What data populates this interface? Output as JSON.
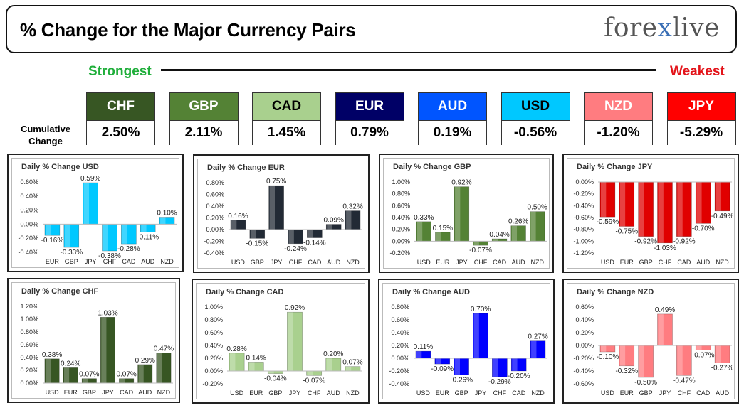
{
  "header": {
    "title": "% Change for the Major Currency Pairs",
    "logo_prefix": "fore",
    "logo_x": "x",
    "logo_suffix": "live"
  },
  "scale": {
    "strongest": "Strongest",
    "weakest": "Weakest"
  },
  "cumulative": {
    "label": "Cumulative Change",
    "items": [
      {
        "currency": "CHF",
        "value": "2.50%",
        "color": "#375623",
        "text": "#ffffff"
      },
      {
        "currency": "GBP",
        "value": "2.11%",
        "color": "#548235",
        "text": "#ffffff"
      },
      {
        "currency": "CAD",
        "value": "1.45%",
        "color": "#a9d08e",
        "text": "#000000"
      },
      {
        "currency": "EUR",
        "value": "0.79%",
        "color": "#000066",
        "text": "#ffffff"
      },
      {
        "currency": "AUD",
        "value": "0.19%",
        "color": "#0055ff",
        "text": "#ffffff"
      },
      {
        "currency": "USD",
        "value": "-0.56%",
        "color": "#00c8ff",
        "text": "#000000"
      },
      {
        "currency": "NZD",
        "value": "-1.20%",
        "color": "#ff7c80",
        "text": "#ffffff"
      },
      {
        "currency": "JPY",
        "value": "-5.29%",
        "color": "#ff0000",
        "text": "#ffffff"
      }
    ]
  },
  "chart_data": [
    {
      "type": "bar",
      "title": "Daily % Change USD",
      "categories": [
        "EUR",
        "GBP",
        "JPY",
        "CHF",
        "CAD",
        "AUD",
        "NZD"
      ],
      "values": [
        -0.16,
        -0.33,
        0.59,
        -0.38,
        -0.28,
        -0.11,
        0.1
      ],
      "labels": [
        "-0.16%",
        "-0.33%",
        "0.59%",
        "-0.38%",
        "-0.28%",
        "-0.11%",
        "0.10%"
      ],
      "yticks": [
        "0.60%",
        "0.40%",
        "0.20%",
        "0.00%",
        "-0.20%",
        "-0.40%"
      ],
      "ylim": [
        -0.4,
        0.6
      ],
      "color": "#00c8ff"
    },
    {
      "type": "bar",
      "title": "Daily % Change EUR",
      "categories": [
        "USD",
        "GBP",
        "JPY",
        "CHF",
        "CAD",
        "AUD",
        "NZD"
      ],
      "values": [
        0.16,
        -0.15,
        0.75,
        -0.24,
        -0.14,
        0.09,
        0.32
      ],
      "labels": [
        "0.16%",
        "-0.15%",
        "0.75%",
        "-0.24%",
        "-0.14%",
        "0.09%",
        "0.32%"
      ],
      "yticks": [
        "0.80%",
        "0.60%",
        "0.40%",
        "0.20%",
        "0.00%",
        "-0.20%",
        "-0.40%"
      ],
      "ylim": [
        -0.4,
        0.8
      ],
      "color": "#222a35"
    },
    {
      "type": "bar",
      "title": "Daily % Change GBP",
      "categories": [
        "USD",
        "EUR",
        "JPY",
        "CHF",
        "CAD",
        "AUD",
        "NZD"
      ],
      "values": [
        0.33,
        0.15,
        0.92,
        -0.07,
        0.04,
        0.26,
        0.5
      ],
      "labels": [
        "0.33%",
        "0.15%",
        "0.92%",
        "-0.07%",
        "0.04%",
        "0.26%",
        "0.50%"
      ],
      "yticks": [
        "1.00%",
        "0.80%",
        "0.60%",
        "0.40%",
        "0.20%",
        "0.00%",
        "-0.20%"
      ],
      "ylim": [
        -0.2,
        1.0
      ],
      "color": "#548235"
    },
    {
      "type": "bar",
      "title": "Daily % Change JPY",
      "categories": [
        "USD",
        "EUR",
        "GBP",
        "CHF",
        "CAD",
        "AUD",
        "NZD"
      ],
      "values": [
        -0.59,
        -0.75,
        -0.92,
        -1.03,
        -0.92,
        -0.7,
        -0.49
      ],
      "labels": [
        "-0.59%",
        "-0.75%",
        "-0.92%",
        "-1.03%",
        "-0.92%",
        "-0.70%",
        "-0.49%"
      ],
      "yticks": [
        "0.00%",
        "-0.20%",
        "-0.40%",
        "-0.60%",
        "-0.80%",
        "-1.00%",
        "-1.20%"
      ],
      "ylim": [
        -1.2,
        0.0
      ],
      "color": "#e00000"
    },
    {
      "type": "bar",
      "title": "Daily % Change CHF",
      "categories": [
        "USD",
        "EUR",
        "GBP",
        "JPY",
        "CAD",
        "AUD",
        "NZD"
      ],
      "values": [
        0.38,
        0.24,
        0.07,
        1.03,
        0.07,
        0.29,
        0.47
      ],
      "labels": [
        "0.38%",
        "0.24%",
        "0.07%",
        "1.03%",
        "0.07%",
        "0.29%",
        "0.47%"
      ],
      "yticks": [
        "1.20%",
        "1.00%",
        "0.80%",
        "0.60%",
        "0.40%",
        "0.20%",
        "0.00%"
      ],
      "ylim": [
        0.0,
        1.2
      ],
      "color": "#375623"
    },
    {
      "type": "bar",
      "title": "Daily % Change CAD",
      "categories": [
        "USD",
        "EUR",
        "GBP",
        "JPY",
        "CHF",
        "AUD",
        "NZD"
      ],
      "values": [
        0.28,
        0.14,
        -0.04,
        0.92,
        -0.07,
        0.2,
        0.07
      ],
      "labels": [
        "0.28%",
        "0.14%",
        "-0.04%",
        "0.92%",
        "-0.07%",
        "0.20%",
        "0.07%"
      ],
      "yticks": [
        "1.00%",
        "0.80%",
        "0.60%",
        "0.40%",
        "0.20%",
        "0.00%",
        "-0.20%"
      ],
      "ylim": [
        -0.2,
        1.0
      ],
      "color": "#a9d08e"
    },
    {
      "type": "bar",
      "title": "Daily % Change AUD",
      "categories": [
        "USD",
        "EUR",
        "GBP",
        "JPY",
        "CHF",
        "CAD",
        "NZD"
      ],
      "values": [
        0.11,
        -0.09,
        -0.26,
        0.7,
        -0.29,
        -0.2,
        0.27
      ],
      "labels": [
        "0.11%",
        "-0.09%",
        "-0.26%",
        "0.70%",
        "-0.29%",
        "-0.20%",
        "0.27%"
      ],
      "yticks": [
        "0.80%",
        "0.60%",
        "0.40%",
        "0.20%",
        "0.00%",
        "-0.20%",
        "-0.40%"
      ],
      "ylim": [
        -0.4,
        0.8
      ],
      "color": "#0000ff"
    },
    {
      "type": "bar",
      "title": "Daily % Change NZD",
      "categories": [
        "USD",
        "EUR",
        "GBP",
        "JPY",
        "CHF",
        "CAD",
        "AUD"
      ],
      "values": [
        -0.1,
        -0.32,
        -0.5,
        0.49,
        -0.47,
        -0.07,
        -0.27
      ],
      "labels": [
        "-0.10%",
        "-0.32%",
        "-0.50%",
        "0.49%",
        "-0.47%",
        "-0.07%",
        "-0.27%"
      ],
      "yticks": [
        "0.60%",
        "0.40%",
        "0.20%",
        "0.00%",
        "-0.20%",
        "-0.40%",
        "-0.60%"
      ],
      "ylim": [
        -0.6,
        0.6
      ],
      "color": "#ff7c80"
    }
  ]
}
